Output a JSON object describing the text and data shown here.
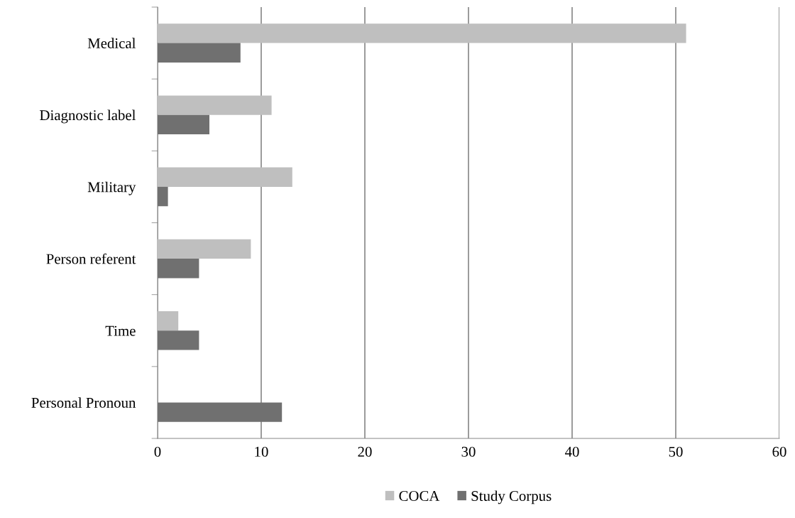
{
  "chart_data": {
    "type": "bar",
    "orientation": "horizontal",
    "categories": [
      "Medical",
      "Diagnostic label",
      "Military",
      "Person referent",
      "Time",
      "Personal Pronoun"
    ],
    "series": [
      {
        "name": "COCA",
        "color": "#bfbfbf",
        "values": [
          51,
          11,
          13,
          9,
          2,
          0
        ]
      },
      {
        "name": "Study Corpus",
        "color": "#707070",
        "values": [
          8,
          5,
          1,
          4,
          4,
          12
        ]
      }
    ],
    "xlim": [
      0,
      60
    ],
    "xticks": [
      0,
      10,
      20,
      30,
      40,
      50,
      60
    ],
    "grid": "x",
    "legend": "bottom"
  }
}
